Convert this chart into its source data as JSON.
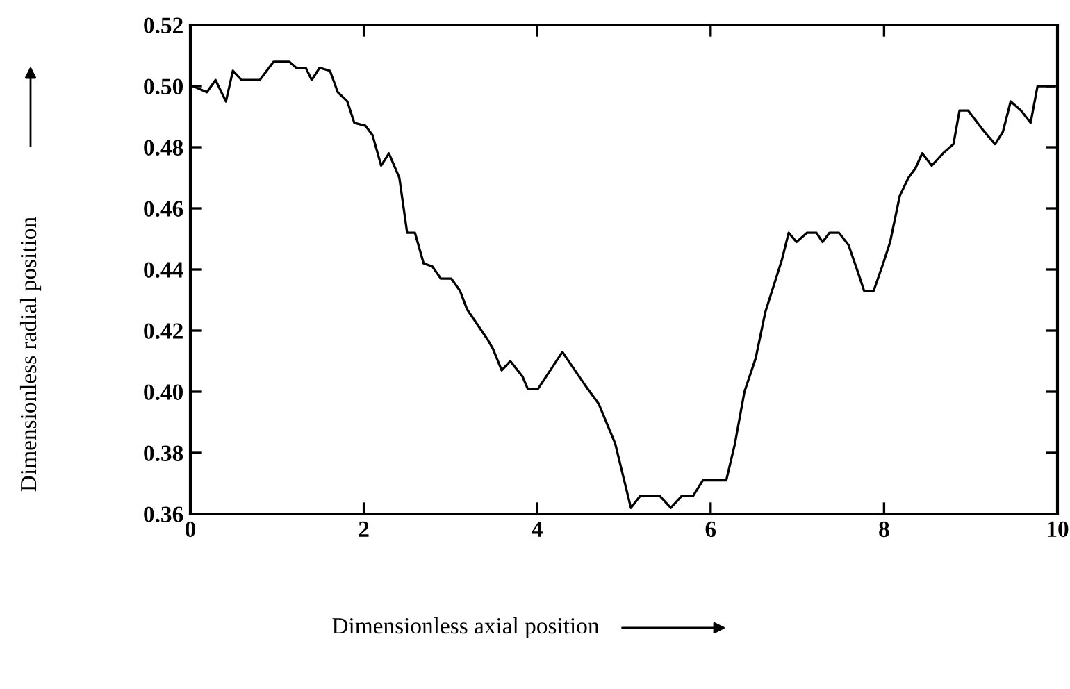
{
  "chart_data": {
    "type": "line",
    "xlabel": "Dimensionless axial position",
    "ylabel": "Dimensionless radial position",
    "xlim": [
      0,
      10
    ],
    "xticks": [
      0,
      2,
      4,
      6,
      8,
      10
    ],
    "ylim": [
      0.36,
      0.52
    ],
    "yticks": [
      {
        "value": 0.36,
        "label": "0.36"
      },
      {
        "value": 0.38,
        "label": "0.38"
      },
      {
        "value": 0.4,
        "label": "0.40"
      },
      {
        "value": 0.42,
        "label": "0.42"
      },
      {
        "value": 0.44,
        "label": "0.44"
      },
      {
        "value": 0.46,
        "label": "0.46"
      },
      {
        "value": 0.48,
        "label": "0.48"
      },
      {
        "value": 0.5,
        "label": "0.50"
      },
      {
        "value": 0.52,
        "label": "0.52"
      }
    ],
    "grid": false,
    "marker": "none",
    "line_style": "solid",
    "series": [
      {
        "color": "#000000",
        "x": [
          0.03,
          0.19,
          0.29,
          0.41,
          0.49,
          0.59,
          0.8,
          0.96,
          1.14,
          1.22,
          1.33,
          1.4,
          1.49,
          1.61,
          1.7,
          1.81,
          1.89,
          2.02,
          2.1,
          2.2,
          2.29,
          2.41,
          2.5,
          2.59,
          2.69,
          2.79,
          2.89,
          3.01,
          3.11,
          3.19,
          3.43,
          3.49,
          3.59,
          3.69,
          3.83,
          3.89,
          4.01,
          4.29,
          4.58,
          4.71,
          4.9,
          5.08,
          5.19,
          5.41,
          5.54,
          5.67,
          5.8,
          5.91,
          6.18,
          6.28,
          6.39,
          6.52,
          6.63,
          6.82,
          6.9,
          6.99,
          7.11,
          7.22,
          7.29,
          7.37,
          7.48,
          7.59,
          7.7,
          7.77,
          7.88,
          7.99,
          8.07,
          8.18,
          8.28,
          8.36,
          8.44,
          8.55,
          8.68,
          8.8,
          8.87,
          8.97,
          9.13,
          9.28,
          9.37,
          9.46,
          9.58,
          9.69,
          9.77,
          9.96
        ],
        "values": [
          0.5,
          0.498,
          0.502,
          0.495,
          0.505,
          0.502,
          0.502,
          0.508,
          0.508,
          0.506,
          0.506,
          0.502,
          0.506,
          0.505,
          0.498,
          0.495,
          0.488,
          0.487,
          0.484,
          0.474,
          0.478,
          0.47,
          0.452,
          0.452,
          0.442,
          0.441,
          0.437,
          0.437,
          0.433,
          0.427,
          0.417,
          0.414,
          0.407,
          0.41,
          0.405,
          0.401,
          0.401,
          0.413,
          0.401,
          0.396,
          0.383,
          0.362,
          0.366,
          0.366,
          0.362,
          0.366,
          0.366,
          0.371,
          0.371,
          0.383,
          0.4,
          0.411,
          0.426,
          0.443,
          0.452,
          0.449,
          0.452,
          0.452,
          0.449,
          0.452,
          0.452,
          0.448,
          0.439,
          0.433,
          0.433,
          0.442,
          0.449,
          0.464,
          0.47,
          0.473,
          0.478,
          0.474,
          0.478,
          0.481,
          0.492,
          0.492,
          0.486,
          0.481,
          0.485,
          0.495,
          0.492,
          0.488,
          0.5,
          0.5
        ]
      }
    ]
  }
}
